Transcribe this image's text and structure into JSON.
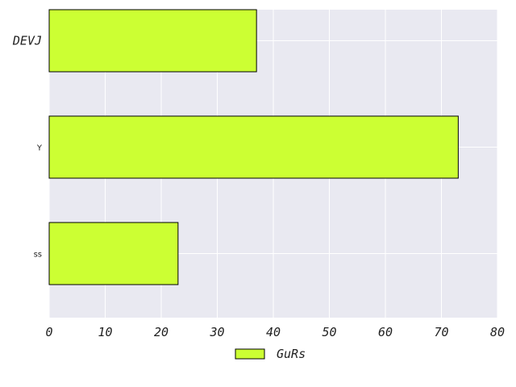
{
  "chart_data": {
    "type": "bar",
    "orientation": "horizontal",
    "categories": [
      "DEVJ",
      "Y",
      "ss"
    ],
    "series": [
      {
        "name": "GuRs",
        "values": [
          37,
          73,
          23
        ]
      }
    ],
    "xlim": [
      0,
      80
    ],
    "xticks": [
      "0",
      "10",
      "20",
      "30",
      "40",
      "50",
      "60",
      "70",
      "80"
    ],
    "grid": true,
    "legend_position": "bottom-center",
    "colors": {
      "bar": "#ccff33",
      "bar_edge": "#000000",
      "plot_bg": "#e9e9f1",
      "grid": "#ffffff"
    }
  }
}
